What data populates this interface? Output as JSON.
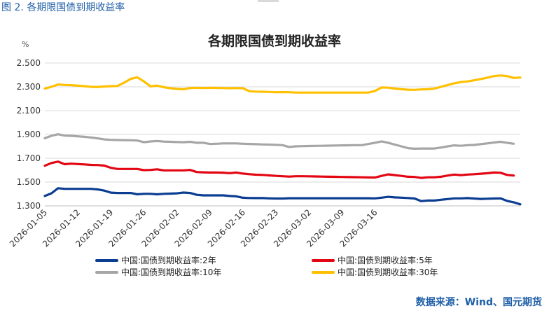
{
  "caption": "图 2.  各期限国债到期收益率",
  "source": "数据来源：Wind、国元期货",
  "chart_data": {
    "type": "line",
    "title": "各期限国债到期收益率",
    "ylabel": "%",
    "ylim": [
      1.3,
      2.5
    ],
    "yticks": [
      1.3,
      1.5,
      1.7,
      1.9,
      2.1,
      2.3,
      2.5
    ],
    "ytick_labels": [
      "1.300",
      "1.500",
      "1.700",
      "1.900",
      "2.100",
      "2.300",
      "2.500"
    ],
    "xticks": [
      {
        "date": "2026-01-05",
        "index": 0
      },
      {
        "date": "2026-01-12",
        "index": 5
      },
      {
        "date": "2026-01-19",
        "index": 10
      },
      {
        "date": "2026-01-26",
        "index": 15
      },
      {
        "date": "2026-02-02",
        "index": 20
      },
      {
        "date": "2026-02-09",
        "index": 25
      },
      {
        "date": "2026-02-16",
        "index": 30
      },
      {
        "date": "2026-02-23",
        "index": 35
      },
      {
        "date": "2026-03-02",
        "index": 40
      },
      {
        "date": "2026-03-09",
        "index": 45
      },
      {
        "date": "2026-03-16",
        "index": 50
      }
    ],
    "grid": true,
    "legend_position": "bottom",
    "series": [
      {
        "name": "中国:国债到期收益率:2年",
        "color": "#0b3d91",
        "values": [
          1.383,
          1.405,
          1.448,
          1.443,
          1.443,
          1.443,
          1.443,
          1.443,
          1.438,
          1.428,
          1.411,
          1.408,
          1.408,
          1.408,
          1.397,
          1.401,
          1.401,
          1.397,
          1.401,
          1.403,
          1.405,
          1.412,
          1.408,
          1.393,
          1.388,
          1.388,
          1.388,
          1.388,
          1.383,
          1.38,
          1.368,
          1.366,
          1.365,
          1.365,
          1.363,
          1.362,
          1.362,
          1.364,
          1.364,
          1.364,
          1.364,
          1.364,
          1.364,
          1.364,
          1.364,
          1.364,
          1.364,
          1.364,
          1.364,
          1.364,
          1.363,
          1.369,
          1.376,
          1.371,
          1.369,
          1.366,
          1.362,
          1.34,
          1.345,
          1.345,
          1.351,
          1.357,
          1.363,
          1.363,
          1.365,
          1.362,
          1.358,
          1.36,
          1.362,
          1.363,
          1.342,
          1.33,
          1.313
        ]
      },
      {
        "name": "中国:国债到期收益率:5年",
        "color": "#e30613",
        "values": [
          1.637,
          1.66,
          1.672,
          1.65,
          1.655,
          1.651,
          1.648,
          1.644,
          1.643,
          1.638,
          1.62,
          1.61,
          1.61,
          1.61,
          1.61,
          1.6,
          1.602,
          1.607,
          1.598,
          1.598,
          1.598,
          1.598,
          1.602,
          1.584,
          1.582,
          1.58,
          1.58,
          1.579,
          1.575,
          1.58,
          1.571,
          1.566,
          1.562,
          1.56,
          1.556,
          1.552,
          1.549,
          1.546,
          1.549,
          1.549,
          1.548,
          1.547,
          1.546,
          1.545,
          1.544,
          1.543,
          1.542,
          1.541,
          1.54,
          1.539,
          1.538,
          1.552,
          1.565,
          1.558,
          1.552,
          1.545,
          1.543,
          1.535,
          1.54,
          1.54,
          1.545,
          1.555,
          1.563,
          1.558,
          1.563,
          1.566,
          1.57,
          1.574,
          1.58,
          1.578,
          1.56,
          1.555
        ]
      },
      {
        "name": "中国:国债到期收益率:10年",
        "color": "#a6a6a6",
        "values": [
          1.868,
          1.888,
          1.902,
          1.89,
          1.888,
          1.884,
          1.88,
          1.874,
          1.867,
          1.858,
          1.855,
          1.853,
          1.852,
          1.851,
          1.849,
          1.835,
          1.841,
          1.845,
          1.84,
          1.838,
          1.836,
          1.835,
          1.838,
          1.83,
          1.83,
          1.82,
          1.822,
          1.825,
          1.825,
          1.825,
          1.822,
          1.82,
          1.818,
          1.816,
          1.815,
          1.813,
          1.81,
          1.795,
          1.8,
          1.802,
          1.803,
          1.804,
          1.805,
          1.806,
          1.807,
          1.808,
          1.809,
          1.81,
          1.81,
          1.82,
          1.83,
          1.842,
          1.83,
          1.815,
          1.8,
          1.785,
          1.78,
          1.782,
          1.782,
          1.782,
          1.79,
          1.8,
          1.808,
          1.805,
          1.81,
          1.812,
          1.818,
          1.825,
          1.832,
          1.838,
          1.83,
          1.822
        ]
      },
      {
        "name": "中国:国债到期收益率:30年",
        "color": "#ffc000",
        "values": [
          2.285,
          2.3,
          2.32,
          2.316,
          2.314,
          2.31,
          2.305,
          2.3,
          2.298,
          2.303,
          2.305,
          2.307,
          2.335,
          2.367,
          2.38,
          2.345,
          2.304,
          2.31,
          2.297,
          2.288,
          2.283,
          2.28,
          2.29,
          2.292,
          2.29,
          2.292,
          2.291,
          2.29,
          2.288,
          2.29,
          2.288,
          2.263,
          2.26,
          2.259,
          2.257,
          2.255,
          2.256,
          2.255,
          2.252,
          2.252,
          2.252,
          2.252,
          2.252,
          2.252,
          2.252,
          2.252,
          2.252,
          2.252,
          2.252,
          2.252,
          2.265,
          2.295,
          2.293,
          2.285,
          2.28,
          2.276,
          2.275,
          2.278,
          2.28,
          2.285,
          2.3,
          2.315,
          2.33,
          2.34,
          2.345,
          2.355,
          2.365,
          2.377,
          2.39,
          2.395,
          2.39,
          2.375,
          2.378
        ]
      }
    ]
  }
}
